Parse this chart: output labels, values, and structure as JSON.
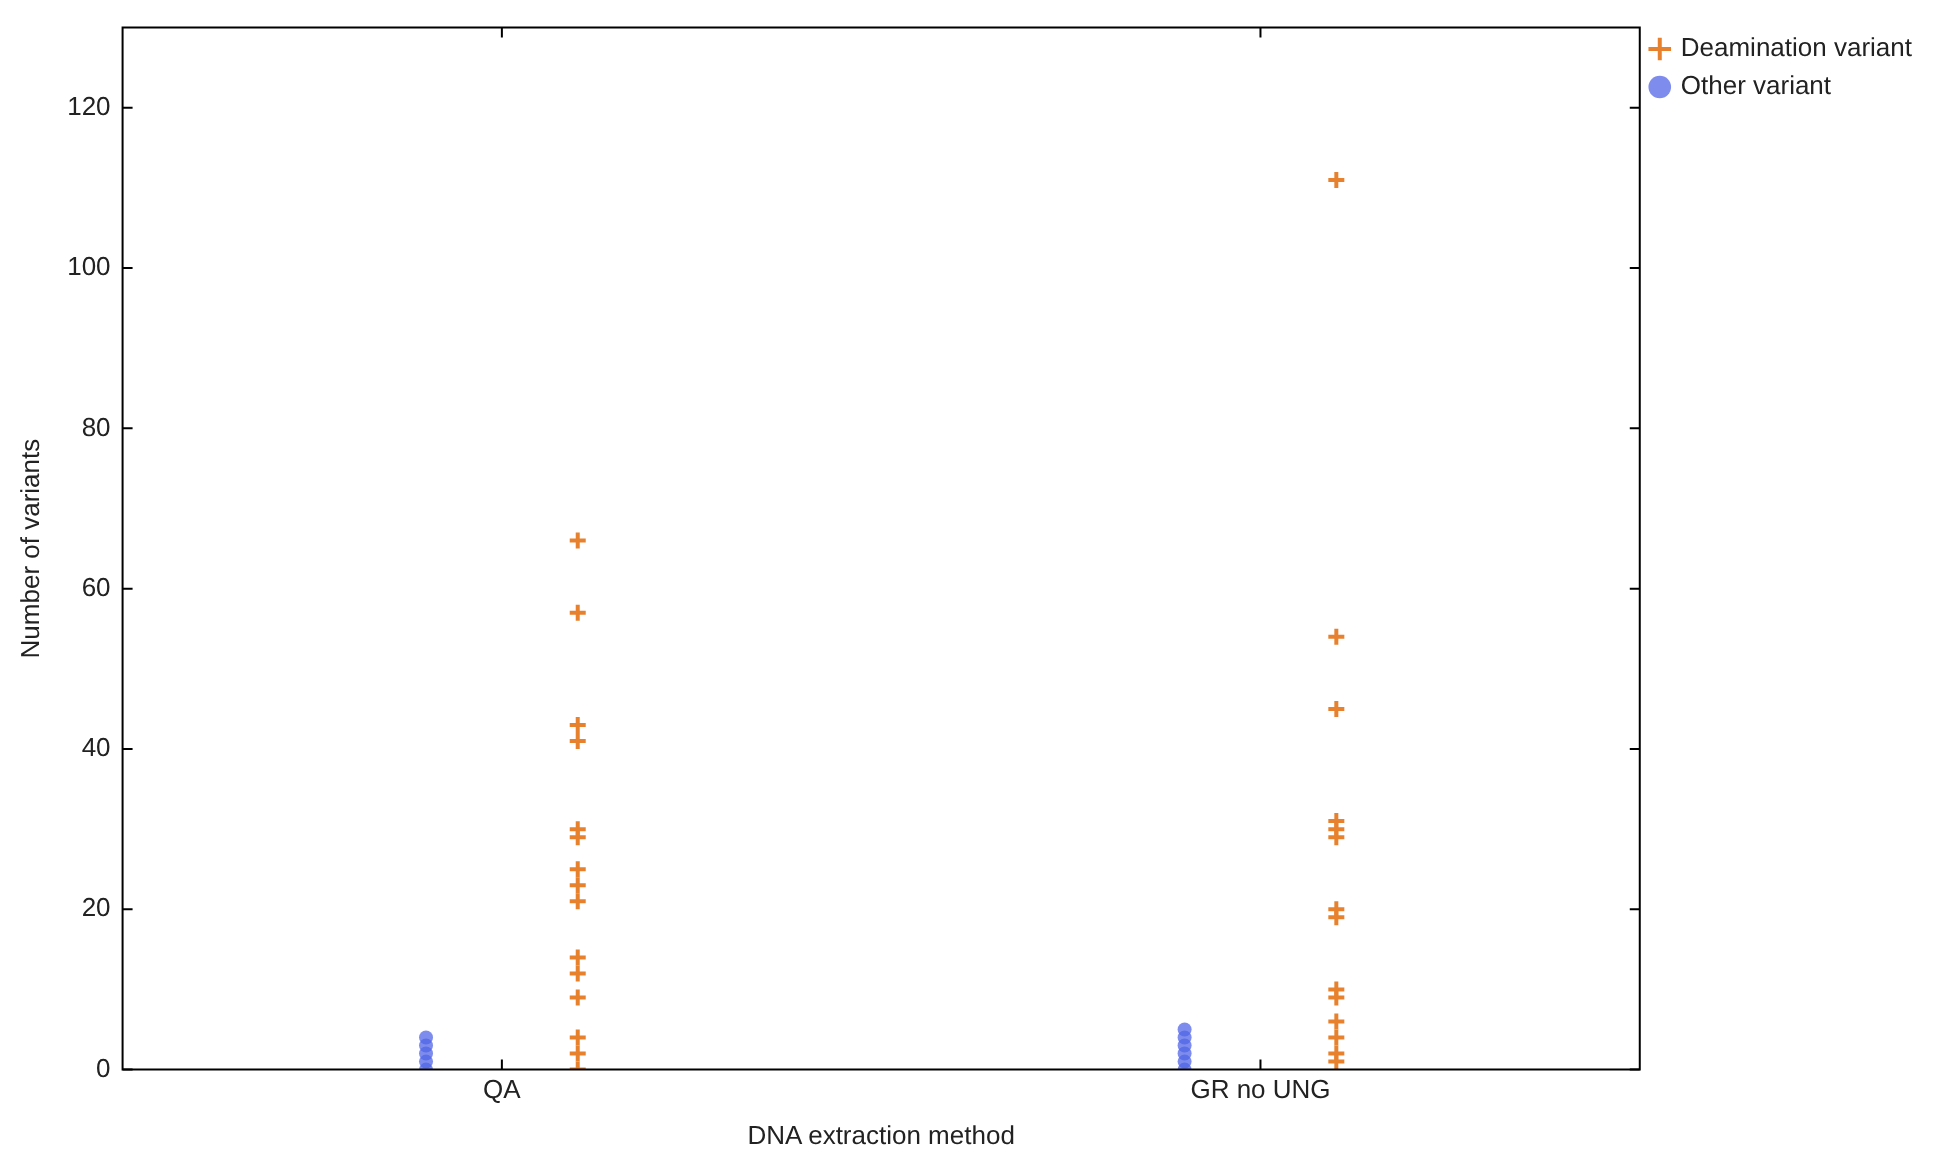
{
  "chart_data": {
    "type": "scatter",
    "xlabel": "DNA extraction method",
    "ylabel": "Number of variants",
    "categories": [
      "QA",
      "GR no UNG"
    ],
    "ylim": [
      0,
      130
    ],
    "yticks": [
      0,
      20,
      40,
      60,
      80,
      100,
      120
    ],
    "grid": false,
    "legend": "top right",
    "series": [
      {
        "name": "Deamination variant",
        "color": "#e8812e",
        "marker": "cross",
        "x": [
          "QA",
          "QA",
          "QA",
          "QA",
          "QA",
          "QA",
          "QA",
          "QA",
          "QA",
          "QA",
          "QA",
          "QA",
          "QA",
          "QA",
          "QA",
          "GR no UNG",
          "GR no UNG",
          "GR no UNG",
          "GR no UNG",
          "GR no UNG",
          "GR no UNG",
          "GR no UNG",
          "GR no UNG",
          "GR no UNG",
          "GR no UNG",
          "GR no UNG",
          "GR no UNG",
          "GR no UNG",
          "GR no UNG"
        ],
        "values": [
          66,
          57,
          43,
          41,
          30,
          29,
          25,
          23,
          21,
          14,
          12,
          9,
          4,
          2,
          0,
          111,
          54,
          45,
          31,
          30,
          29,
          20,
          19,
          10,
          9,
          6,
          4,
          2,
          1
        ]
      },
      {
        "name": "Other variant",
        "color": "#4f63e6",
        "marker": "circle",
        "x": [
          "QA",
          "QA",
          "QA",
          "QA",
          "QA",
          "GR no UNG",
          "GR no UNG",
          "GR no UNG",
          "GR no UNG",
          "GR no UNG",
          "GR no UNG"
        ],
        "values": [
          0,
          1,
          2,
          3,
          4,
          0,
          1,
          2,
          3,
          4,
          5
        ]
      }
    ]
  }
}
